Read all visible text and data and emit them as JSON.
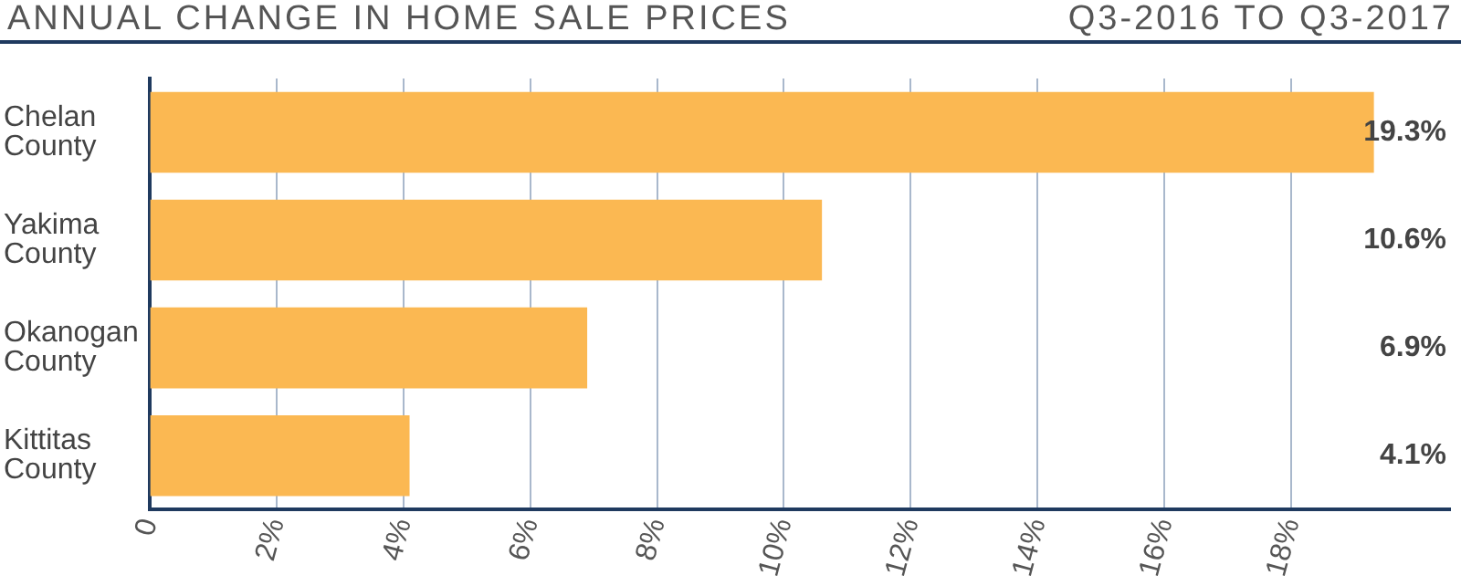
{
  "chart_data": {
    "type": "bar",
    "orientation": "horizontal",
    "title": "ANNUAL CHANGE IN HOME SALE PRICES",
    "subtitle": "Q3-2016 TO Q3-2017",
    "categories": [
      "Chelan County",
      "Yakima County",
      "Okanogan County",
      "Kittitas County"
    ],
    "values": [
      19.3,
      10.6,
      6.9,
      4.1
    ],
    "color": "#fbb852",
    "value_labels": [
      "19.3%",
      "10.6%",
      "6.9%",
      "4.1%"
    ],
    "xlim": [
      0,
      20.5
    ],
    "xticks": [
      0,
      {
        "value": 2,
        "label": "2%"
      },
      {
        "value": 4,
        "label": "4%"
      },
      {
        "value": 6,
        "label": "6%"
      },
      {
        "value": 8,
        "label": "8%"
      },
      {
        "value": 10,
        "label": "10%"
      },
      {
        "value": 12,
        "label": "12%"
      },
      {
        "value": 14,
        "label": "14%"
      },
      {
        "value": 16,
        "label": "16%"
      },
      {
        "value": 18,
        "label": "18%"
      }
    ],
    "grid": "x",
    "legend": false
  }
}
